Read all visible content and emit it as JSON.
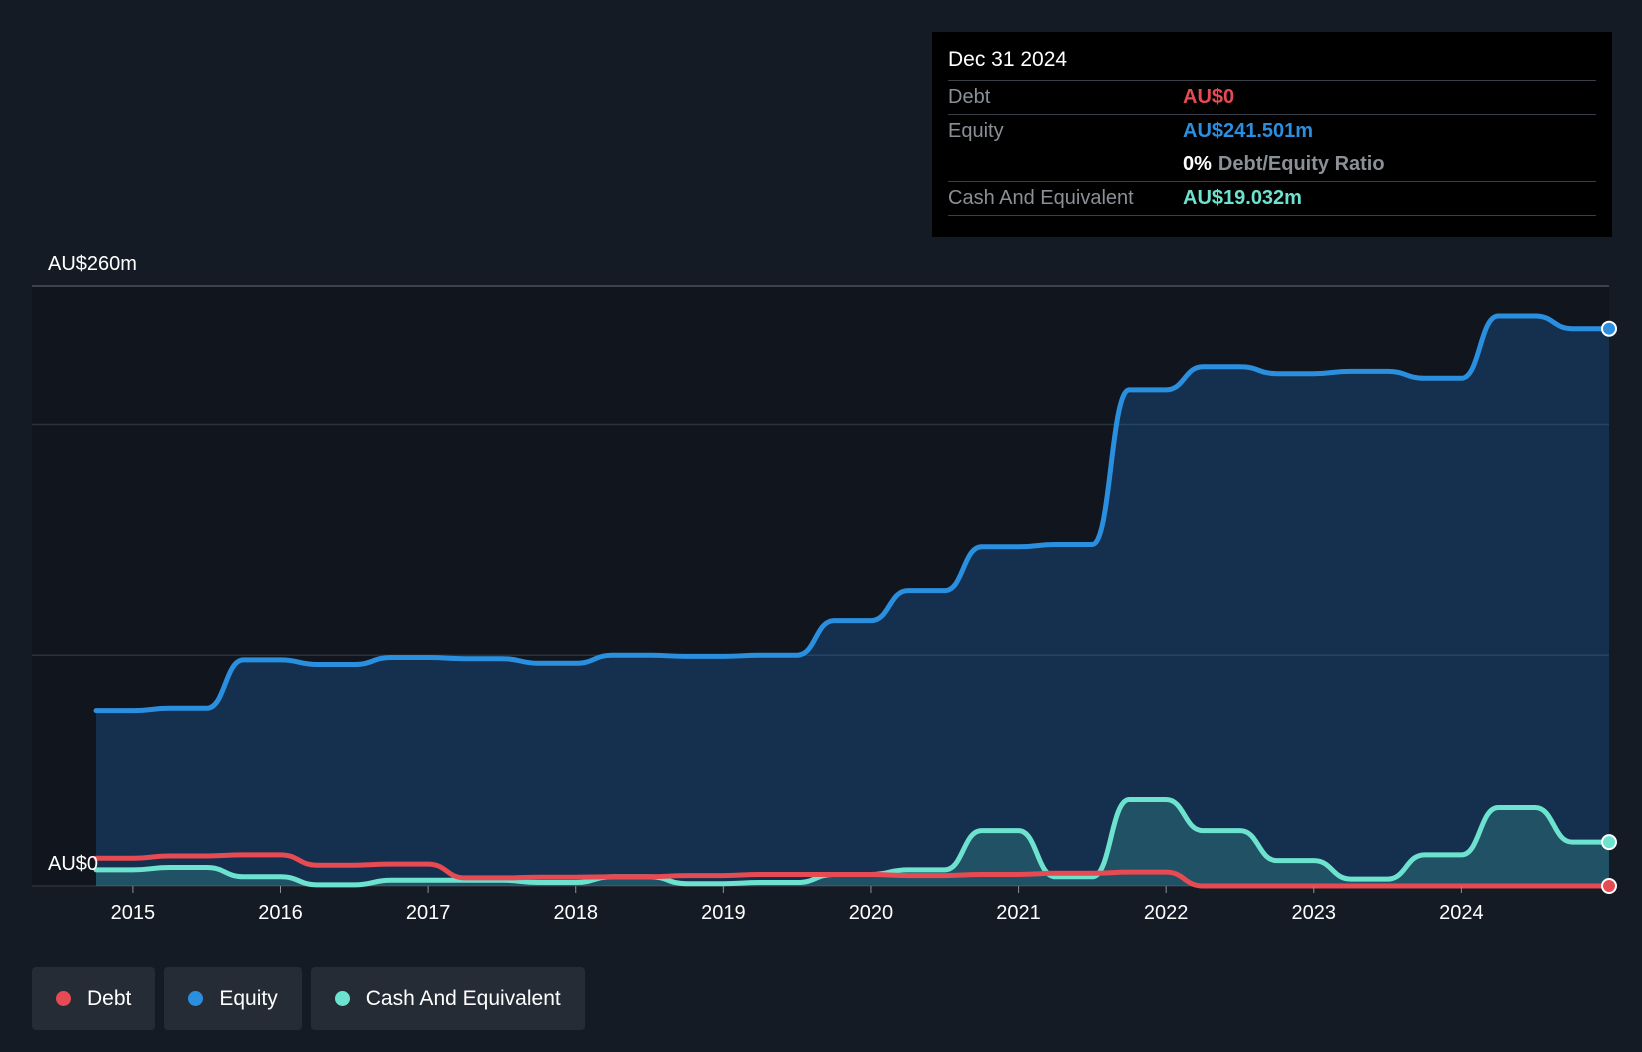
{
  "tooltip": {
    "date": "Dec 31 2024",
    "rows": [
      {
        "label": "Debt",
        "value": "AU$0",
        "color": "#e64a52"
      },
      {
        "label": "Equity",
        "value": "AU$241.501m",
        "color": "#2b8fe0"
      },
      {
        "label": "",
        "ratio_value": "0%",
        "ratio_label": "Debt/Equity Ratio"
      },
      {
        "label": "Cash And Equivalent",
        "value": "AU$19.032m",
        "color": "#6de3cf"
      }
    ]
  },
  "legend": [
    {
      "label": "Debt",
      "color": "#e64a52"
    },
    {
      "label": "Equity",
      "color": "#2b8fe0"
    },
    {
      "label": "Cash And Equivalent",
      "color": "#6de3cf"
    }
  ],
  "chart_data": {
    "type": "line",
    "y_labels": {
      "top": "AU$260m",
      "bottom": "AU$0"
    },
    "ylim": [
      0,
      260
    ],
    "xlim": [
      2014.6,
      2025.0
    ],
    "x_ticks": [
      "2015",
      "2016",
      "2017",
      "2018",
      "2019",
      "2020",
      "2021",
      "2022",
      "2023",
      "2024"
    ],
    "x_tick_values": [
      2015,
      2016,
      2017,
      2018,
      2019,
      2020,
      2021,
      2022,
      2023,
      2024
    ],
    "grid": true,
    "highlight": {
      "x": 2025.0,
      "label": "Dec 31 2024"
    },
    "series": [
      {
        "name": "Equity",
        "color": "#2b8fe0",
        "filled": true,
        "x": [
          2014.75,
          2015.0,
          2015.25,
          2015.5,
          2015.75,
          2016.0,
          2016.25,
          2016.5,
          2016.75,
          2017.0,
          2017.25,
          2017.5,
          2017.75,
          2018.0,
          2018.25,
          2018.5,
          2018.75,
          2019.0,
          2019.25,
          2019.5,
          2019.75,
          2020.0,
          2020.25,
          2020.5,
          2020.75,
          2021.0,
          2021.25,
          2021.5,
          2021.75,
          2022.0,
          2022.25,
          2022.5,
          2022.75,
          2023.0,
          2023.25,
          2023.5,
          2023.75,
          2024.0,
          2024.25,
          2024.5,
          2024.75,
          2025.0
        ],
        "values": [
          76,
          76,
          77,
          77,
          98,
          98,
          96,
          96,
          99,
          99,
          98.5,
          98.5,
          96.5,
          96.5,
          100,
          100,
          99.5,
          99.5,
          100,
          100,
          115,
          115,
          128,
          128,
          147,
          147,
          148,
          148,
          215,
          215,
          225,
          225,
          222,
          222,
          223,
          223,
          220,
          220,
          247,
          247,
          241.5,
          241.5
        ]
      },
      {
        "name": "Cash And Equivalent",
        "color": "#6de3cf",
        "filled": true,
        "x": [
          2014.75,
          2015.0,
          2015.25,
          2015.5,
          2015.75,
          2016.0,
          2016.25,
          2016.5,
          2016.75,
          2017.0,
          2017.25,
          2017.5,
          2017.75,
          2018.0,
          2018.25,
          2018.5,
          2018.75,
          2019.0,
          2019.25,
          2019.5,
          2019.75,
          2020.0,
          2020.25,
          2020.5,
          2020.75,
          2021.0,
          2021.25,
          2021.5,
          2021.75,
          2022.0,
          2022.25,
          2022.5,
          2022.75,
          2023.0,
          2023.25,
          2023.5,
          2023.75,
          2024.0,
          2024.25,
          2024.5,
          2024.75,
          2025.0
        ],
        "values": [
          7,
          7,
          8,
          8,
          4,
          4,
          0.5,
          0.5,
          2.5,
          2.5,
          2.5,
          2.5,
          1.5,
          1.5,
          4,
          4,
          1,
          1,
          1.5,
          1.5,
          5,
          5,
          7,
          7,
          24,
          24,
          4,
          4,
          37.5,
          37.5,
          24,
          24,
          11,
          11,
          3,
          3,
          13.5,
          13.5,
          34,
          34,
          19,
          19
        ]
      },
      {
        "name": "Debt",
        "color": "#e64a52",
        "filled": false,
        "x": [
          2014.75,
          2015.0,
          2015.25,
          2015.5,
          2015.75,
          2016.0,
          2016.25,
          2016.5,
          2016.75,
          2017.0,
          2017.25,
          2017.5,
          2017.75,
          2018.0,
          2018.25,
          2018.5,
          2018.75,
          2019.0,
          2019.25,
          2019.5,
          2019.75,
          2020.0,
          2020.25,
          2020.5,
          2020.75,
          2021.0,
          2021.25,
          2021.5,
          2021.75,
          2022.0,
          2022.25,
          2022.5,
          2022.75,
          2023.0,
          2023.25,
          2023.5,
          2023.75,
          2024.0,
          2024.25,
          2024.5,
          2024.75,
          2025.0
        ],
        "values": [
          12,
          12,
          13,
          13,
          13.5,
          13.5,
          9,
          9,
          9.5,
          9.5,
          3.5,
          3.5,
          3.8,
          3.8,
          4,
          4,
          4.5,
          4.5,
          5,
          5,
          5,
          5,
          4.5,
          4.5,
          5,
          5,
          5.5,
          5.5,
          6,
          6,
          0,
          0,
          0,
          0,
          0,
          0,
          0,
          0,
          0,
          0,
          0,
          0
        ]
      }
    ]
  }
}
